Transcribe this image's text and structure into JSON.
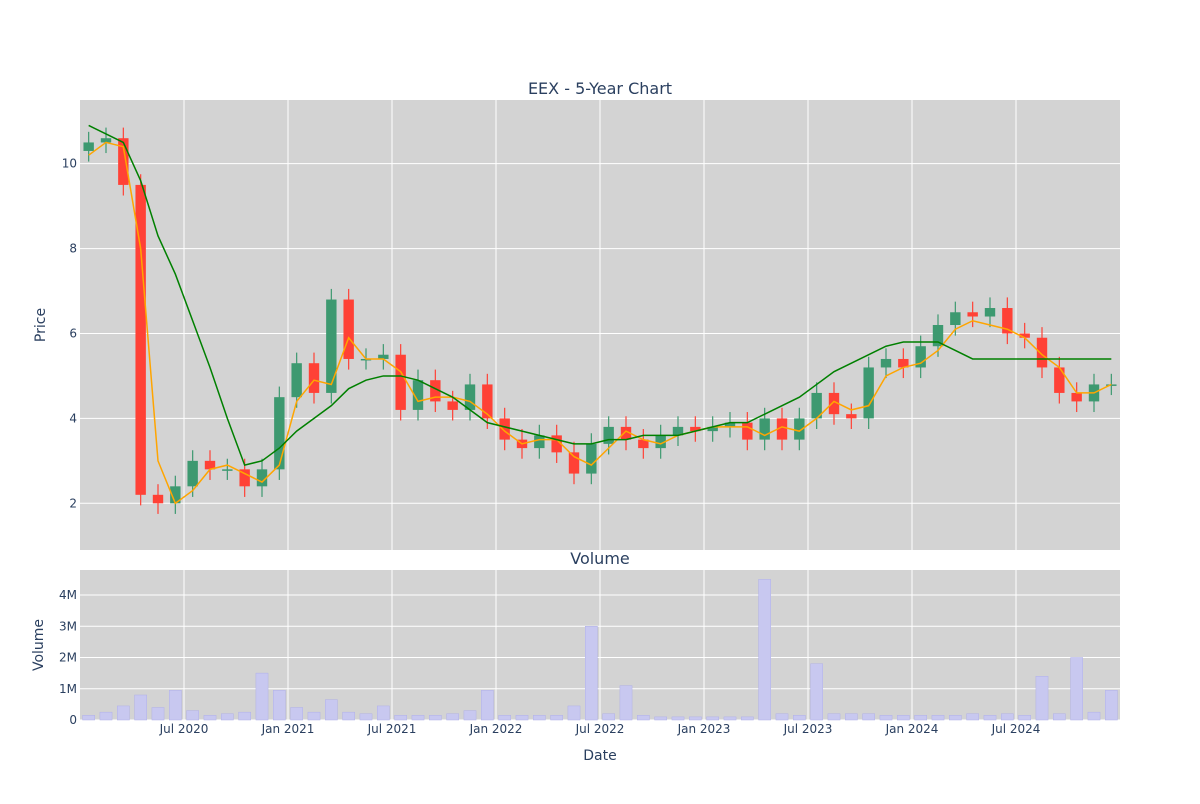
{
  "chart_data": [
    {
      "type": "candlestick",
      "title": "EEX - 5-Year Chart",
      "xlabel": "",
      "ylabel": "Price",
      "ylim": [
        0.9,
        11.5
      ],
      "yticks": [
        2,
        4,
        6,
        8,
        10
      ],
      "grid": true,
      "legend": "none",
      "colors": {
        "plot_bg": "#d3d3d3",
        "up": "#3d9970",
        "down": "#ff4136",
        "ma_short": "#ffa500",
        "ma_long": "#008000",
        "grid": "#ffffff",
        "text": "#2a3f5f"
      },
      "x": [
        "2020-01",
        "2020-02",
        "2020-03",
        "2020-04",
        "2020-05",
        "2020-06",
        "2020-07",
        "2020-08",
        "2020-09",
        "2020-10",
        "2020-11",
        "2020-12",
        "2021-01",
        "2021-02",
        "2021-03",
        "2021-04",
        "2021-05",
        "2021-06",
        "2021-07",
        "2021-08",
        "2021-09",
        "2021-10",
        "2021-11",
        "2021-12",
        "2022-01",
        "2022-02",
        "2022-03",
        "2022-04",
        "2022-05",
        "2022-06",
        "2022-07",
        "2022-08",
        "2022-09",
        "2022-10",
        "2022-11",
        "2022-12",
        "2023-01",
        "2023-02",
        "2023-03",
        "2023-04",
        "2023-05",
        "2023-06",
        "2023-07",
        "2023-08",
        "2023-09",
        "2023-10",
        "2023-11",
        "2023-12",
        "2024-01",
        "2024-02",
        "2024-03",
        "2024-04",
        "2024-05",
        "2024-06",
        "2024-07",
        "2024-08",
        "2024-09",
        "2024-10",
        "2024-11",
        "2024-12"
      ],
      "series": [
        {
          "name": "",
          "values": [
            10.5,
            10.6,
            9.5,
            2.2,
            2.0,
            2.4,
            3.0,
            2.8,
            2.8,
            2.4,
            2.8,
            4.5,
            5.3,
            4.6,
            6.8,
            5.4,
            5.4,
            5.5,
            4.2,
            4.9,
            4.4,
            4.2,
            4.8,
            4.0,
            3.5,
            3.3,
            3.6,
            3.2,
            2.7,
            3.4,
            3.8,
            3.5,
            3.3,
            3.6,
            3.8,
            3.7,
            3.8,
            3.9,
            3.5,
            4.0,
            3.5,
            4.0,
            4.6,
            4.1,
            4.0,
            5.2,
            5.4,
            5.2,
            5.7,
            6.2,
            6.5,
            6.4,
            6.6,
            6.0,
            5.9,
            5.2,
            4.6,
            4.4,
            4.8,
            4.8
          ]
        },
        {
          "name": "",
          "values": [
            10.2,
            10.5,
            10.4,
            8.0,
            3.0,
            2.0,
            2.3,
            2.8,
            2.9,
            2.7,
            2.5,
            2.9,
            4.4,
            4.9,
            4.8,
            5.9,
            5.4,
            5.4,
            5.1,
            4.4,
            4.5,
            4.5,
            4.4,
            4.1,
            3.7,
            3.4,
            3.5,
            3.5,
            3.1,
            2.9,
            3.3,
            3.7,
            3.5,
            3.4,
            3.6,
            3.7,
            3.8,
            3.8,
            3.8,
            3.6,
            3.8,
            3.7,
            4.0,
            4.4,
            4.2,
            4.3,
            5.0,
            5.2,
            5.3,
            5.6,
            6.1,
            6.3,
            6.2,
            6.1,
            5.9,
            5.5,
            5.2,
            4.6,
            4.6,
            4.8
          ]
        },
        {
          "name": "",
          "values": [
            10.9,
            10.7,
            10.5,
            9.6,
            8.3,
            7.4,
            6.3,
            5.2,
            4.0,
            2.9,
            3.0,
            3.3,
            3.7,
            4.0,
            4.3,
            4.7,
            4.9,
            5.0,
            5.0,
            4.9,
            4.7,
            4.5,
            4.2,
            3.9,
            3.8,
            3.7,
            3.6,
            3.5,
            3.4,
            3.4,
            3.5,
            3.5,
            3.6,
            3.6,
            3.6,
            3.7,
            3.8,
            3.9,
            3.9,
            4.1,
            4.3,
            4.5,
            4.8,
            5.1,
            5.3,
            5.5,
            5.7,
            5.8,
            5.8,
            5.8,
            5.6,
            5.4,
            5.4,
            5.4,
            5.4,
            5.4,
            5.4,
            5.4,
            5.4,
            5.4
          ]
        }
      ]
    },
    {
      "type": "bar",
      "title": "Volume",
      "xlabel": "Date",
      "ylabel": "Volume",
      "ylim": [
        0,
        4800000
      ],
      "yticks": [
        "0",
        "1M",
        "2M",
        "3M",
        "4M"
      ],
      "xticks": [
        "Jul 2020",
        "Jan 2021",
        "Jul 2021",
        "Jan 2022",
        "Jul 2022",
        "Jan 2023",
        "Jul 2023",
        "Jan 2024",
        "Jul 2024"
      ],
      "grid": true,
      "colors": {
        "plot_bg": "#d3d3d3",
        "bar": "#c8c8f0",
        "grid": "#ffffff",
        "text": "#2a3f5f"
      },
      "x": [
        "2020-01",
        "2020-02",
        "2020-03",
        "2020-04",
        "2020-05",
        "2020-06",
        "2020-07",
        "2020-08",
        "2020-09",
        "2020-10",
        "2020-11",
        "2020-12",
        "2021-01",
        "2021-02",
        "2021-03",
        "2021-04",
        "2021-05",
        "2021-06",
        "2021-07",
        "2021-08",
        "2021-09",
        "2021-10",
        "2021-11",
        "2021-12",
        "2022-01",
        "2022-02",
        "2022-03",
        "2022-04",
        "2022-05",
        "2022-06",
        "2022-07",
        "2022-08",
        "2022-09",
        "2022-10",
        "2022-11",
        "2022-12",
        "2023-01",
        "2023-02",
        "2023-03",
        "2023-04",
        "2023-05",
        "2023-06",
        "2023-07",
        "2023-08",
        "2023-09",
        "2023-10",
        "2023-11",
        "2023-12",
        "2024-01",
        "2024-02",
        "2024-03",
        "2024-04",
        "2024-05",
        "2024-06",
        "2024-07",
        "2024-08",
        "2024-09",
        "2024-10",
        "2024-11",
        "2024-12"
      ],
      "values": [
        150000,
        250000,
        450000,
        800000,
        400000,
        950000,
        300000,
        150000,
        200000,
        250000,
        1500000,
        950000,
        400000,
        250000,
        650000,
        250000,
        200000,
        450000,
        150000,
        150000,
        150000,
        200000,
        300000,
        950000,
        150000,
        150000,
        150000,
        150000,
        450000,
        3000000,
        200000,
        1100000,
        150000,
        100000,
        100000,
        100000,
        100000,
        100000,
        100000,
        4500000,
        200000,
        150000,
        1800000,
        200000,
        200000,
        200000,
        150000,
        150000,
        150000,
        150000,
        150000,
        200000,
        150000,
        200000,
        150000,
        1400000,
        200000,
        2000000,
        250000,
        950000
      ]
    }
  ]
}
